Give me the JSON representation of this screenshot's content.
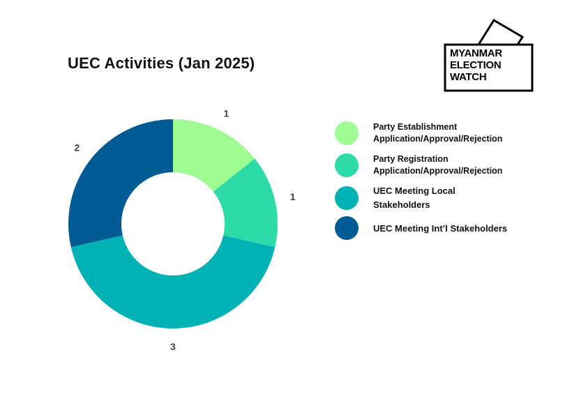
{
  "title": "UEC Activities (Jan 2025)",
  "logo": {
    "line1": "MYANMAR",
    "line2": "ELECTION",
    "line3": "WATCH"
  },
  "chart_data": {
    "type": "pie",
    "title": "UEC Activities (Jan 2025)",
    "donut": true,
    "categories": [
      "Party Establishment Application/Approval/Rejection",
      "Party Registration Application/Approval/Rejection",
      "UEC Meeting Local Stakeholders",
      "UEC Meeting Int’l Stakeholders"
    ],
    "values": [
      1,
      1,
      3,
      2
    ],
    "colors": [
      "#9efc93",
      "#2cdba8",
      "#00b2b3",
      "#005b94"
    ],
    "data_labels": [
      "1",
      "1",
      "3",
      "2"
    ],
    "legend_position": "right"
  },
  "legend": {
    "items": [
      {
        "line1": "Party Establishment",
        "line2": "Application/Approval/Rejection"
      },
      {
        "line1": "Party Registration",
        "line2": "Application/Approval/Rejection"
      },
      {
        "line1": "UEC Meeting Local",
        "line2": "Stakeholders"
      },
      {
        "line1": "UEC Meeting Int’l Stakeholders",
        "line2": ""
      }
    ]
  }
}
